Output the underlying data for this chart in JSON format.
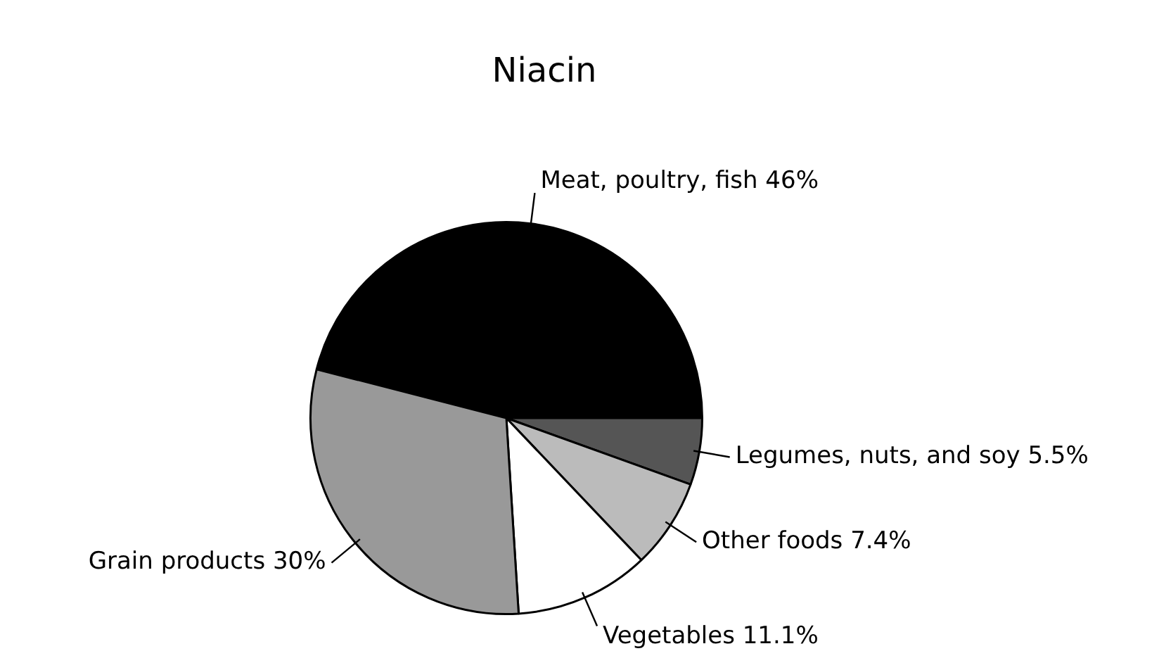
{
  "chart_data": {
    "type": "pie",
    "title": "Niacin",
    "categories": [
      "Meat, poultry, fish",
      "Legumes, nuts, and soy",
      "Other foods",
      "Vegetables",
      "Grain products"
    ],
    "values": [
      46,
      5.5,
      7.4,
      11.1,
      30
    ],
    "value_labels": [
      "46%",
      "5.5%",
      "7.4%",
      "11.1%",
      "30%"
    ],
    "colors": [
      "#000000",
      "#555555",
      "#bbbbbb",
      "#ffffff",
      "#999999"
    ],
    "legend": false
  }
}
